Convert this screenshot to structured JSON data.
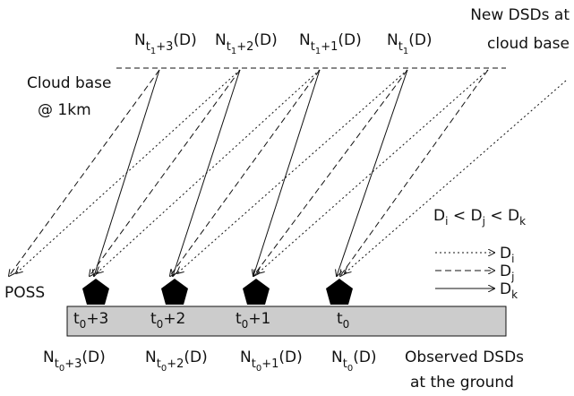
{
  "top_labels": [
    {
      "main": "N",
      "sub": "t",
      "sub2": "1",
      "sub_rest": "+3",
      "tail": "(D)"
    },
    {
      "main": "N",
      "sub": "t",
      "sub2": "1",
      "sub_rest": "+2",
      "tail": "(D)"
    },
    {
      "main": "N",
      "sub": "t",
      "sub2": "1",
      "sub_rest": "+1",
      "tail": "(D)"
    },
    {
      "main": "N",
      "sub": "t",
      "sub2": "1",
      "tail": "(D)"
    }
  ],
  "new_dsds": [
    "New DSDs at",
    "cloud base"
  ],
  "cloud_base": [
    "Cloud base",
    "@ 1km"
  ],
  "instrument": "POSS",
  "times": [
    {
      "main": "t",
      "sub": "0",
      "rest": "+3"
    },
    {
      "main": "t",
      "sub": "0",
      "rest": "+2"
    },
    {
      "main": "t",
      "sub": "0",
      "rest": "+1"
    },
    {
      "main": "t",
      "sub": "0"
    }
  ],
  "ground_labels": [
    {
      "main": "N",
      "sub": "t",
      "sub2": "0",
      "sub_rest": "+3",
      "tail": "(D)"
    },
    {
      "main": "N",
      "sub": "t",
      "sub2": "0",
      "sub_rest": "+2",
      "tail": "(D)"
    },
    {
      "main": "N",
      "sub": "t",
      "sub2": "0",
      "sub_rest": "+1",
      "tail": "(D)"
    },
    {
      "main": "N",
      "sub": "t",
      "sub2": "0",
      "tail": "(D)"
    }
  ],
  "observed": [
    "Observed DSDs",
    "at the ground"
  ],
  "legend": {
    "relation": [
      {
        "main": "D",
        "sub": "i"
      },
      {
        "op": " < "
      },
      {
        "main": "D",
        "sub": "j"
      },
      {
        "op": " < "
      },
      {
        "main": "D",
        "sub": "k"
      }
    ],
    "entries": [
      {
        "main": "D",
        "sub": "i"
      },
      {
        "main": "D",
        "sub": "j"
      },
      {
        "main": "D",
        "sub": "k"
      }
    ]
  }
}
